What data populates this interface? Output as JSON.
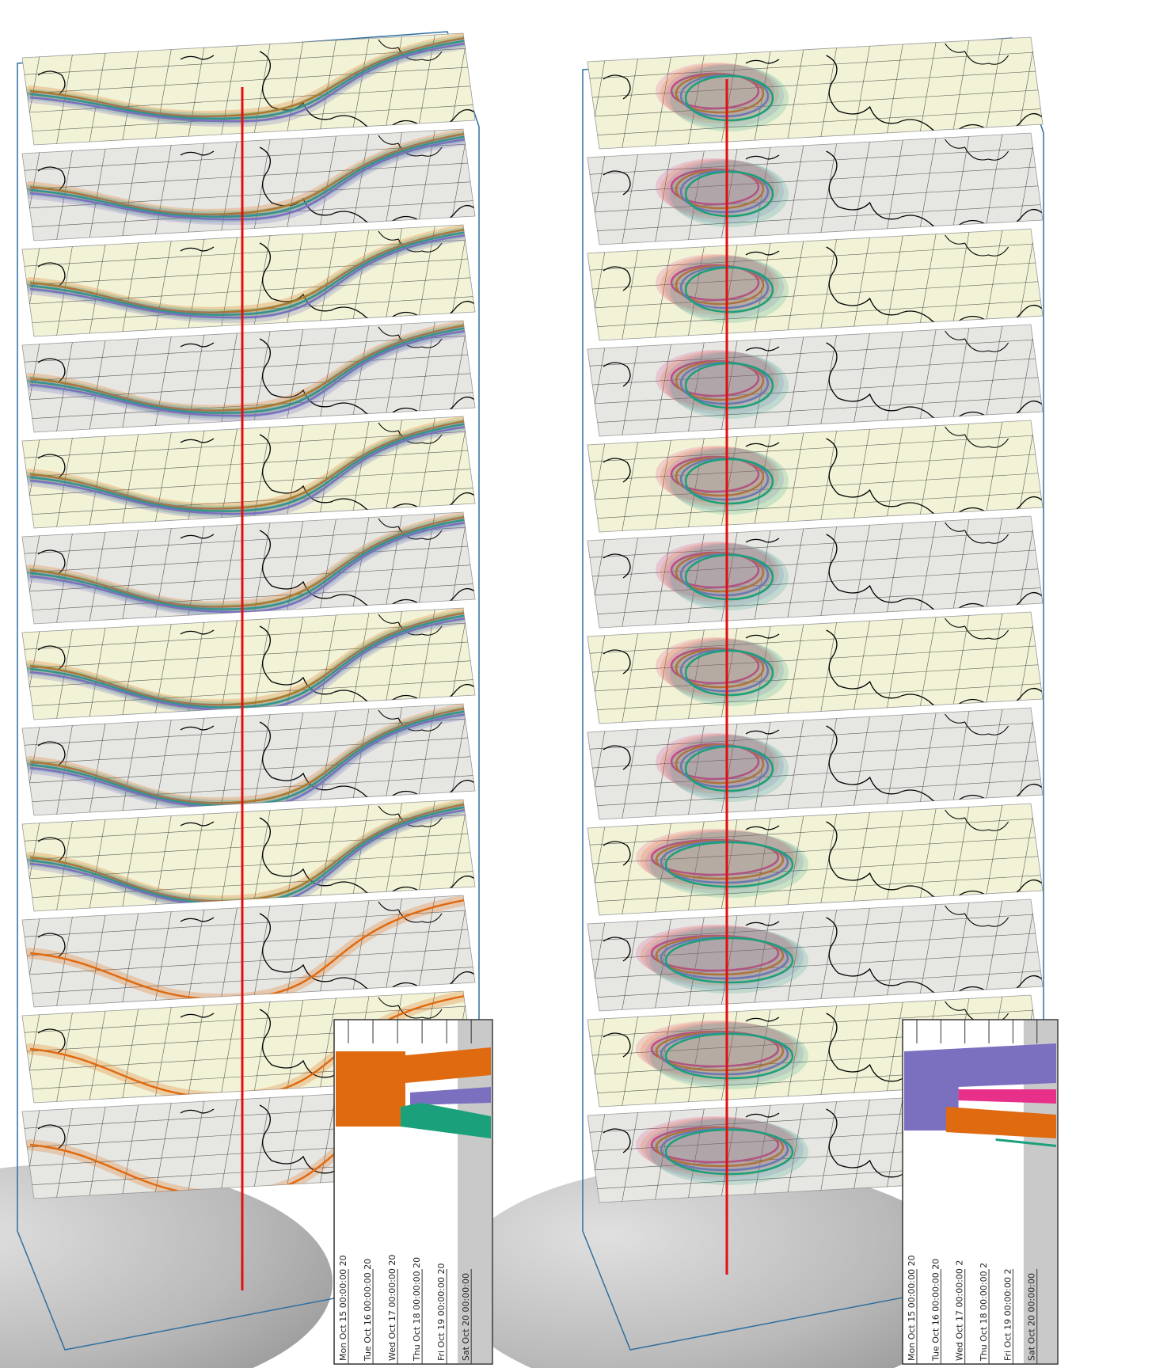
{
  "colors": {
    "layer_light": "#f1f2d6",
    "layer_grey": "#e6e6e2",
    "grid": "#222222",
    "coast": "#000000",
    "axis_line": "#e01010",
    "frame": "#2f6f9f",
    "orange": "#e06a10",
    "green": "#1aa07a",
    "purple": "#7b6fc0",
    "pink": "#e8308a",
    "globe": "#9a9a9a"
  },
  "panels": [
    {
      "name": "left-stack",
      "layer_count": 12,
      "member_colors": [
        "orange",
        "green",
        "purple"
      ],
      "inset": {
        "dates": [
          "Mon Oct 15 00:00:00 20",
          "Tue Oct 16 00:00:00 20",
          "Wed Oct 17 00:00:00 20",
          "Thu Oct 18 00:00:00 20",
          "Fri Oct 19 00:00:00 20",
          "Sat Oct 20 00:00:00"
        ],
        "bands": [
          "orange",
          "purple",
          "green"
        ]
      }
    },
    {
      "name": "right-stack",
      "layer_count": 12,
      "member_colors": [
        "pink",
        "orange",
        "purple",
        "green"
      ],
      "inset": {
        "dates": [
          "Mon Oct 15 00:00:00 20",
          "Tue Oct 16 00:00:00 20",
          "Wed Oct 17 00:00:00 2",
          "Thu Oct 18 00:00:00 2",
          "Fri Oct 19 00:00:00 2",
          "Sat Oct 20 00:00:00"
        ],
        "bands": [
          "purple",
          "pink",
          "orange",
          "green"
        ]
      }
    }
  ]
}
